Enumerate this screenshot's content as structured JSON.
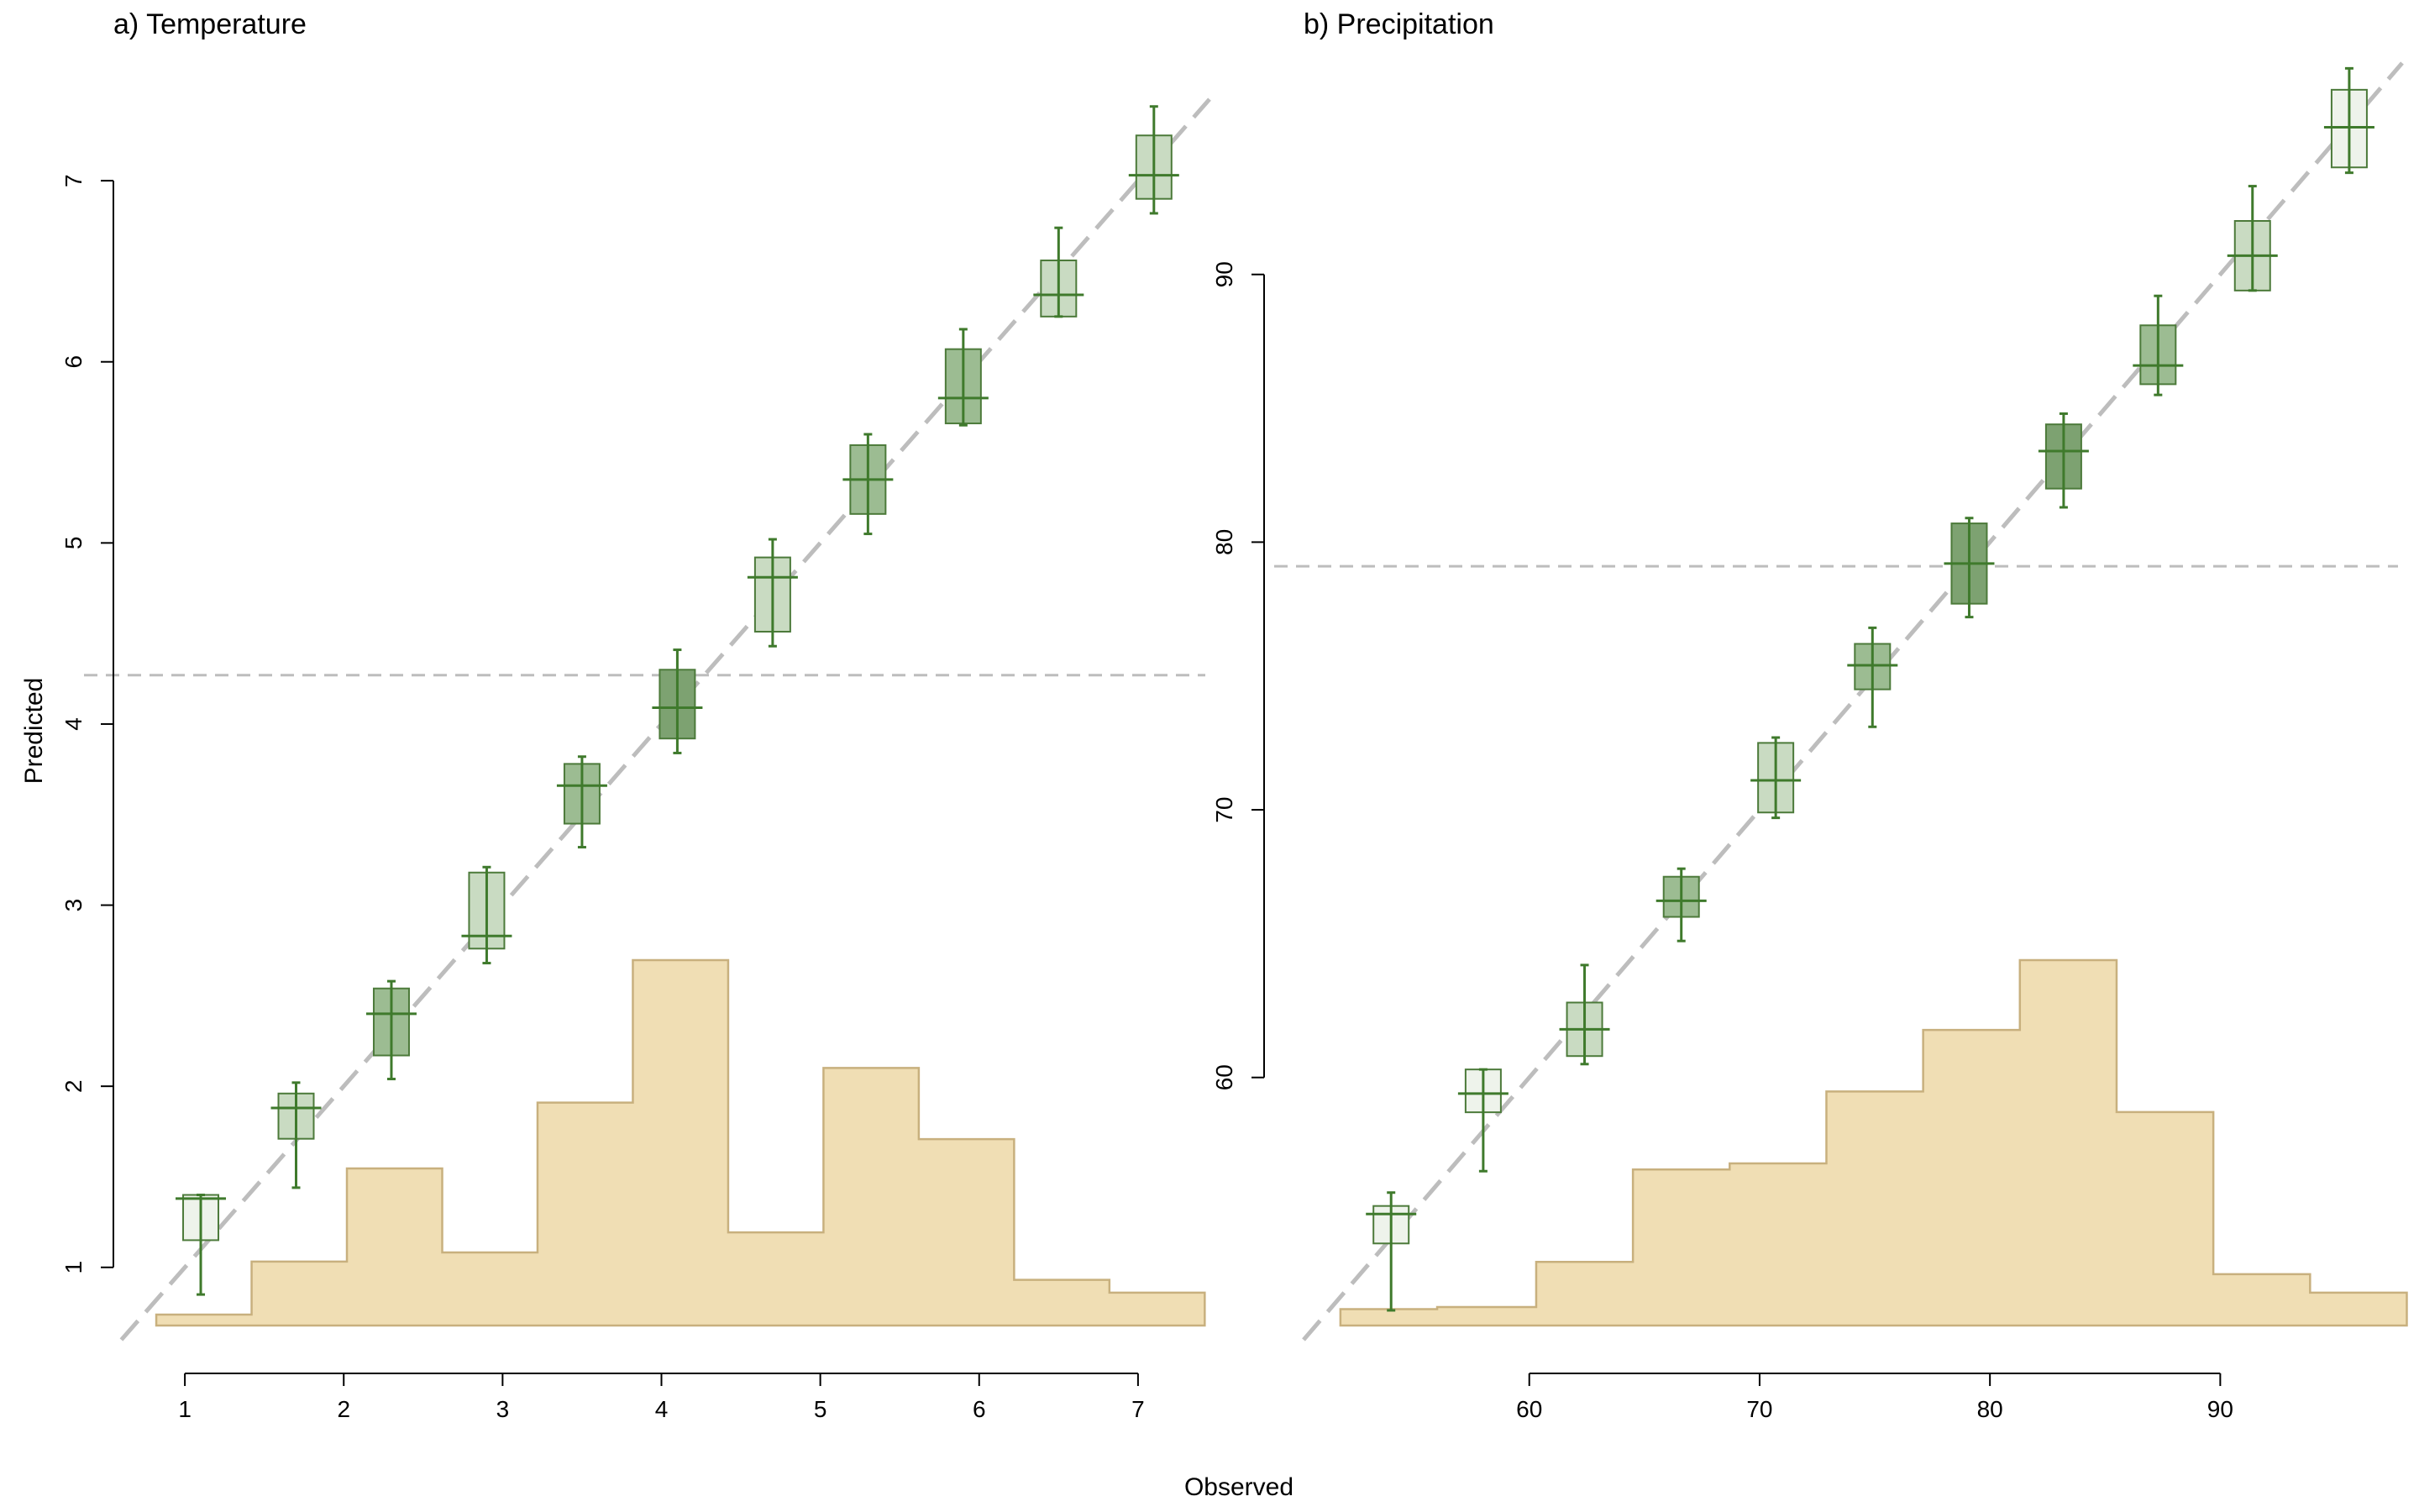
{
  "figure": {
    "xlabel": "Observed"
  },
  "colors": {
    "hist_fill": "#f0deb4",
    "hist_stroke": "#c8b07e",
    "box_stroke": "#4c7a3a",
    "whisker": "#3f7a2c",
    "box_light": "#eef3eb",
    "box_mid": "#c9dbc2",
    "box_dark": "#9cbc92",
    "box_darkest": "#7da271",
    "ref_line": "#bdbdbd"
  },
  "chart_data": [
    {
      "type": "box",
      "title": "a) Temperature",
      "xlabel": "Observed",
      "ylabel": "Predicted",
      "xlim": [
        0.55,
        7.45
      ],
      "ylim": [
        0.6,
        7.65
      ],
      "xticks": [
        "1",
        "2",
        "3",
        "4",
        "5",
        "6",
        "7"
      ],
      "yticks": [
        "1",
        "2",
        "3",
        "4",
        "5",
        "6",
        "7"
      ],
      "mean_predicted": 4.27,
      "boxes": [
        {
          "x": 1.1,
          "low": 0.85,
          "q1": 1.15,
          "median": 1.38,
          "q3": 1.4,
          "high": 1.4,
          "shade": "light"
        },
        {
          "x": 1.7,
          "low": 1.44,
          "q1": 1.71,
          "median": 1.88,
          "q3": 1.96,
          "high": 2.02,
          "shade": "mid"
        },
        {
          "x": 2.3,
          "low": 2.04,
          "q1": 2.17,
          "median": 2.4,
          "q3": 2.54,
          "high": 2.58,
          "shade": "dark"
        },
        {
          "x": 2.9,
          "low": 2.68,
          "q1": 2.76,
          "median": 2.83,
          "q3": 3.18,
          "high": 3.21,
          "shade": "mid"
        },
        {
          "x": 3.5,
          "low": 3.32,
          "q1": 3.45,
          "median": 3.66,
          "q3": 3.78,
          "high": 3.82,
          "shade": "dark"
        },
        {
          "x": 4.1,
          "low": 3.84,
          "q1": 3.92,
          "median": 4.09,
          "q3": 4.3,
          "high": 4.41,
          "shade": "darkest"
        },
        {
          "x": 4.7,
          "low": 4.43,
          "q1": 4.51,
          "median": 4.81,
          "q3": 4.92,
          "high": 5.02,
          "shade": "mid"
        },
        {
          "x": 5.3,
          "low": 5.05,
          "q1": 5.16,
          "median": 5.35,
          "q3": 5.54,
          "high": 5.6,
          "shade": "dark"
        },
        {
          "x": 5.9,
          "low": 5.65,
          "q1": 5.66,
          "median": 5.8,
          "q3": 6.07,
          "high": 6.18,
          "shade": "dark"
        },
        {
          "x": 6.5,
          "low": 6.25,
          "q1": 6.25,
          "median": 6.37,
          "q3": 6.56,
          "high": 6.74,
          "shade": "mid"
        },
        {
          "x": 7.1,
          "low": 6.82,
          "q1": 6.9,
          "median": 7.03,
          "q3": 7.25,
          "high": 7.41,
          "shade": "mid"
        }
      ],
      "histogram": {
        "edges": [
          0.82,
          1.42,
          2.02,
          2.62,
          3.22,
          3.82,
          4.42,
          5.02,
          5.62,
          6.22,
          6.82,
          7.42
        ],
        "heights": [
          0.06,
          0.35,
          0.86,
          0.4,
          1.22,
          2.0,
          0.51,
          1.41,
          1.02,
          0.25,
          0.18
        ]
      }
    },
    {
      "type": "box",
      "title": "b) Precipitation",
      "xlabel": "Observed",
      "ylabel": "",
      "xlim": [
        50.2,
        97.9
      ],
      "ylim": [
        50.2,
        97.9
      ],
      "xticks": [
        "60",
        "70",
        "80",
        "90"
      ],
      "yticks": [
        "60",
        "70",
        "80",
        "90"
      ],
      "mean_predicted": 79.1,
      "boxes": [
        {
          "x": 54.0,
          "low": 51.3,
          "q1": 53.8,
          "median": 54.9,
          "q3": 55.2,
          "high": 55.7,
          "shade": "light"
        },
        {
          "x": 58.0,
          "low": 56.5,
          "q1": 58.7,
          "median": 59.4,
          "q3": 60.3,
          "high": 60.3,
          "shade": "light"
        },
        {
          "x": 62.4,
          "low": 60.5,
          "q1": 60.8,
          "median": 61.8,
          "q3": 62.8,
          "high": 64.2,
          "shade": "mid"
        },
        {
          "x": 66.6,
          "low": 65.1,
          "q1": 66.0,
          "median": 66.6,
          "q3": 67.5,
          "high": 67.8,
          "shade": "dark"
        },
        {
          "x": 70.7,
          "low": 69.7,
          "q1": 69.9,
          "median": 71.1,
          "q3": 72.5,
          "high": 72.7,
          "shade": "mid"
        },
        {
          "x": 74.9,
          "low": 73.1,
          "q1": 74.5,
          "median": 75.4,
          "q3": 76.2,
          "high": 76.8,
          "shade": "dark"
        },
        {
          "x": 79.1,
          "low": 77.2,
          "q1": 77.7,
          "median": 79.2,
          "q3": 80.7,
          "high": 80.9,
          "shade": "darkest"
        },
        {
          "x": 83.2,
          "low": 81.3,
          "q1": 82.0,
          "median": 83.4,
          "q3": 84.4,
          "high": 84.8,
          "shade": "darkest"
        },
        {
          "x": 87.3,
          "low": 85.5,
          "q1": 85.9,
          "median": 86.6,
          "q3": 88.1,
          "high": 89.2,
          "shade": "dark"
        },
        {
          "x": 91.4,
          "low": 89.4,
          "q1": 89.4,
          "median": 90.7,
          "q3": 92.0,
          "high": 93.3,
          "shade": "mid"
        },
        {
          "x": 95.6,
          "low": 93.8,
          "q1": 94.0,
          "median": 95.5,
          "q3": 96.9,
          "high": 97.7,
          "shade": "light"
        }
      ],
      "histogram": {
        "edges": [
          51.8,
          56.0,
          60.3,
          64.5,
          68.7,
          72.9,
          77.1,
          81.3,
          85.5,
          89.7,
          93.9,
          98.1
        ],
        "heights": [
          0.4,
          0.45,
          1.55,
          3.8,
          3.95,
          5.7,
          7.2,
          8.9,
          5.2,
          1.25,
          0.8
        ]
      }
    }
  ]
}
